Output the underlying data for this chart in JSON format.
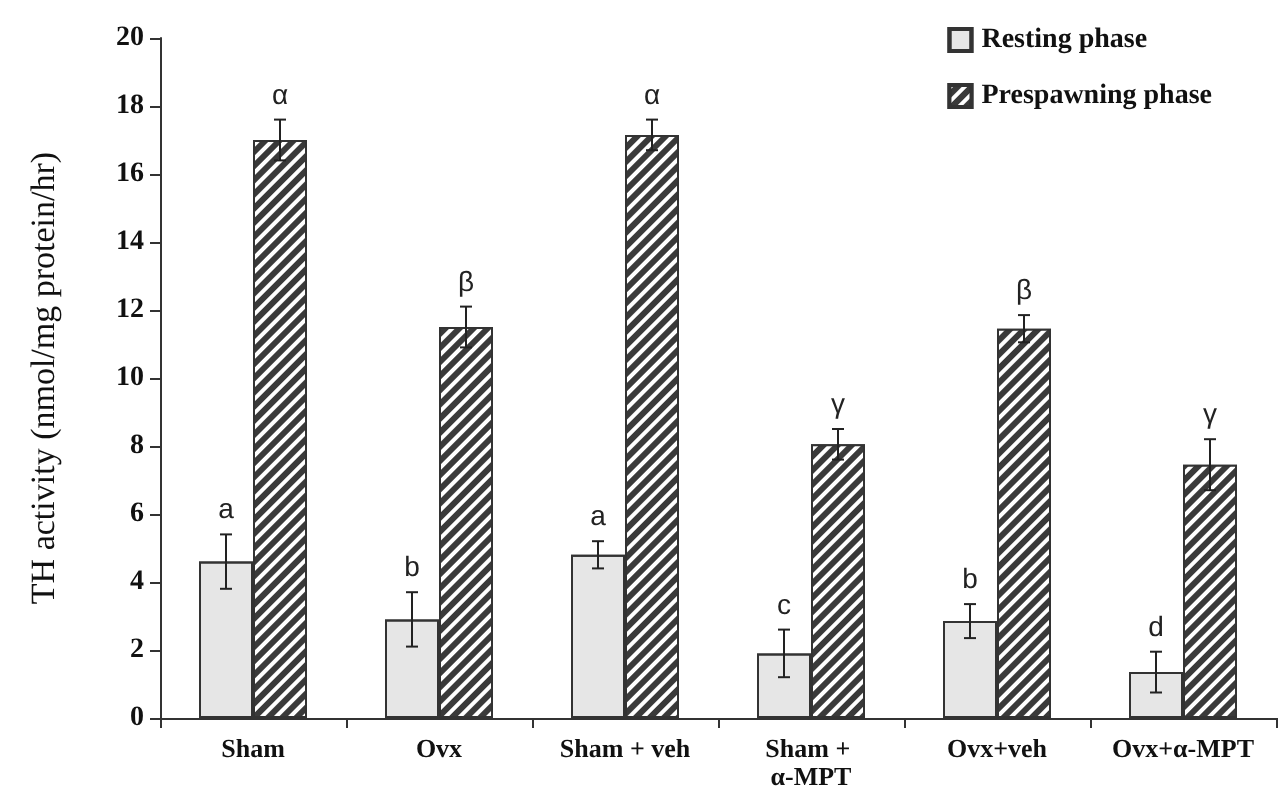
{
  "chart_data": {
    "type": "bar",
    "ylabel": "TH activity (nmol/mg protein/hr)",
    "categories": [
      "Sham",
      "Ovx",
      "Sham + veh",
      "Sham + α-MPT",
      "Ovx+veh",
      "Ovx+α-MPT"
    ],
    "series": [
      {
        "name": "Resting phase",
        "color": "#e6e6e6",
        "values": [
          4.6,
          2.9,
          4.8,
          1.9,
          2.85,
          1.35
        ],
        "errors": [
          0.8,
          0.8,
          0.4,
          0.7,
          0.5,
          0.6
        ]
      },
      {
        "name": "Prespawning phase",
        "color": "#3a3a3a",
        "values": [
          17.0,
          11.5,
          17.15,
          8.05,
          11.45,
          7.45
        ],
        "errors": [
          0.6,
          0.6,
          0.45,
          0.45,
          0.4,
          0.75
        ]
      }
    ],
    "ylim": [
      0,
      20
    ],
    "yticks": [
      0,
      2,
      4,
      6,
      8,
      10,
      12,
      14,
      16,
      18,
      20
    ],
    "grid": false,
    "legend": "top right",
    "annotations": [
      {
        "text": "a",
        "x": "Sham",
        "y": 4.6
      },
      {
        "text": "α",
        "x": "Sham",
        "y": 17.0
      },
      {
        "text": "b",
        "x": "Ovx",
        "y": 2.9
      },
      {
        "text": "β",
        "x": "Ovx",
        "y": 11.5
      },
      {
        "text": "a",
        "x": "Sham + veh",
        "y": 4.8
      },
      {
        "text": "α",
        "x": "Sham + veh",
        "y": 17.15
      },
      {
        "text": "c",
        "x": "Sham + α-MPT",
        "y": 1.9
      },
      {
        "text": "γ",
        "x": "Sham + α-MPT",
        "y": 8.05
      },
      {
        "text": "b",
        "x": "Ovx+veh",
        "y": 2.85
      },
      {
        "text": "β",
        "x": "Ovx+veh",
        "y": 11.45
      },
      {
        "text": "d",
        "x": "Ovx+α-MPT",
        "y": 1.35
      },
      {
        "text": "γ",
        "x": "Ovx+α-MPT",
        "y": 7.45
      }
    ]
  }
}
